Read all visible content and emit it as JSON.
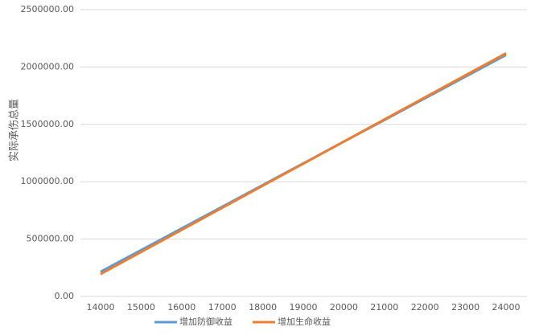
{
  "chart_data": {
    "type": "line",
    "y_label": "实际承伤总量",
    "x": [
      14000,
      15000,
      16000,
      17000,
      18000,
      19000,
      20000,
      21000,
      22000,
      23000,
      24000
    ],
    "series": [
      {
        "name": "增加防御收益",
        "color": "#5b9bd5",
        "values": [
          215000,
          404000,
          593000,
          782000,
          971000,
          1160000,
          1349000,
          1538000,
          1727000,
          1916000,
          2105000
        ]
      },
      {
        "name": "增加生命收益",
        "color": "#ed7d31",
        "values": [
          195000,
          387500,
          580000,
          772500,
          965000,
          1157500,
          1350000,
          1542500,
          1735000,
          1927500,
          2120000
        ]
      }
    ],
    "xlim": [
      14000,
      24000
    ],
    "xticks": [
      14000,
      15000,
      16000,
      17000,
      18000,
      19000,
      20000,
      21000,
      22000,
      23000,
      24000
    ],
    "ylim": [
      0,
      2500000
    ],
    "yticks": [
      {
        "value": 0,
        "label": "0.00"
      },
      {
        "value": 500000,
        "label": "500000.00"
      },
      {
        "value": 1000000,
        "label": "1000000.00"
      },
      {
        "value": 1500000,
        "label": "1500000.00"
      },
      {
        "value": 2000000,
        "label": "2000000.00"
      },
      {
        "value": 2500000,
        "label": "2500000.00"
      }
    ],
    "grid": true,
    "legend": "bottom"
  }
}
